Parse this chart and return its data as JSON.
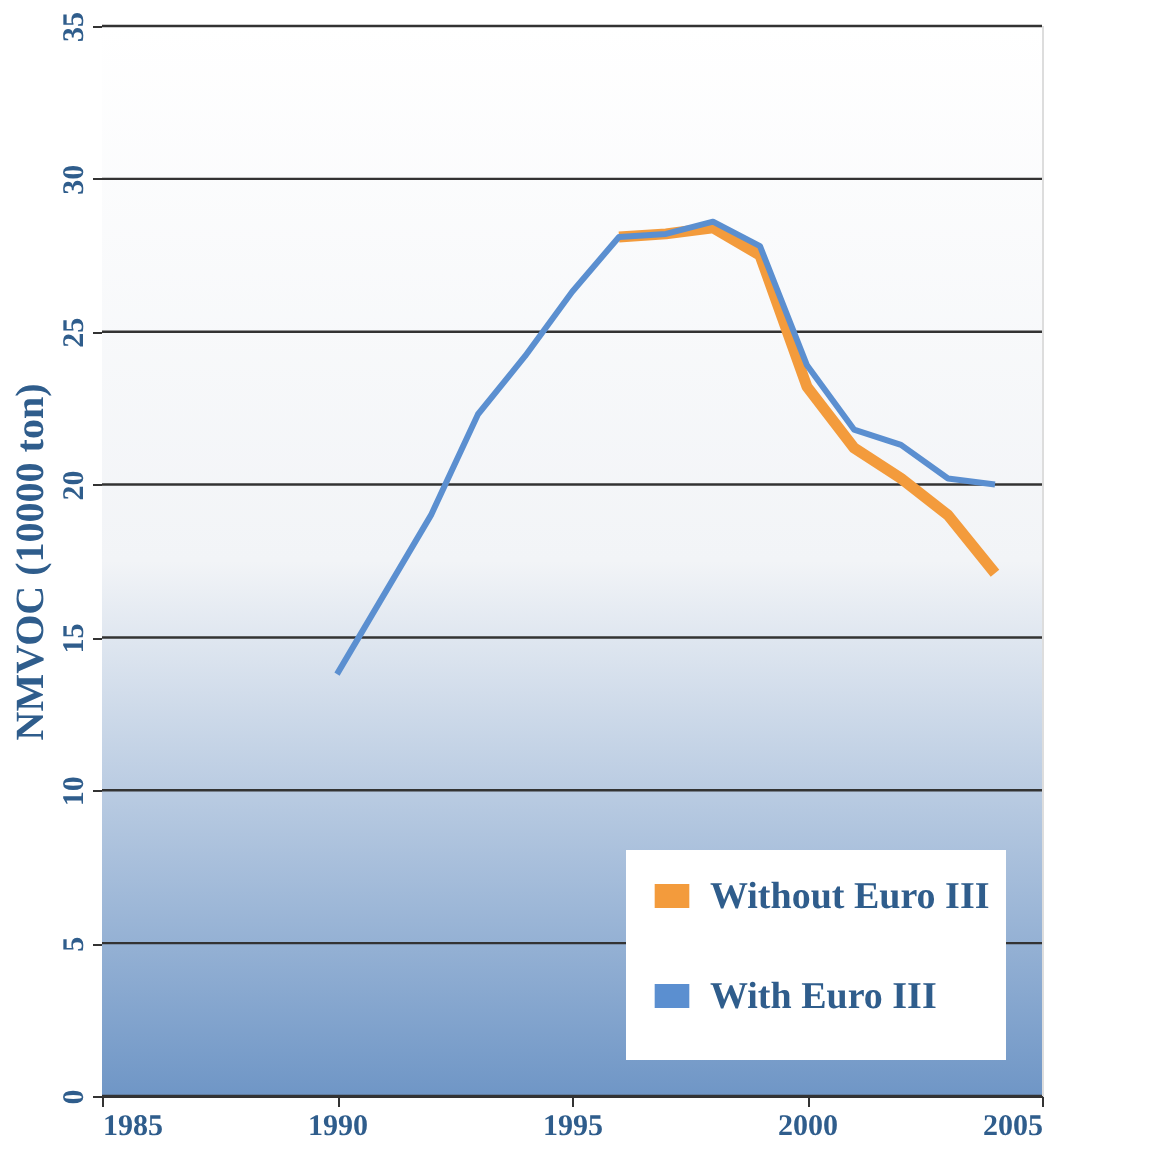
{
  "chart_data": {
    "type": "line",
    "ylabel": "NMVOC  (10000 ton)",
    "x": [
      1990,
      1991,
      1992,
      1993,
      1994,
      1995,
      1996,
      1997,
      1998,
      1999,
      2000,
      2001,
      2002,
      2003,
      2004
    ],
    "series": [
      {
        "name": "Without Euro III",
        "color": "#f39b3c",
        "values": [
          null,
          null,
          null,
          null,
          null,
          null,
          28.1,
          28.2,
          28.4,
          27.5,
          23.2,
          21.2,
          20.2,
          19.0,
          17.1
        ]
      },
      {
        "name": "With Euro III",
        "color": "#5b8fd0",
        "values": [
          13.8,
          16.4,
          19.0,
          22.3,
          24.2,
          26.3,
          28.1,
          28.2,
          28.6,
          27.8,
          23.9,
          21.8,
          21.3,
          20.2,
          20.0
        ]
      }
    ],
    "xlim": [
      1985,
      2005
    ],
    "xticks": [
      1985,
      1990,
      1995,
      2000,
      2005
    ],
    "ylim": [
      0,
      35
    ],
    "yticks": [
      0,
      5,
      10,
      15,
      20,
      25,
      30,
      35
    ],
    "grid": "y",
    "legend": "bottom right",
    "marker": "none",
    "line_style": "solid"
  }
}
